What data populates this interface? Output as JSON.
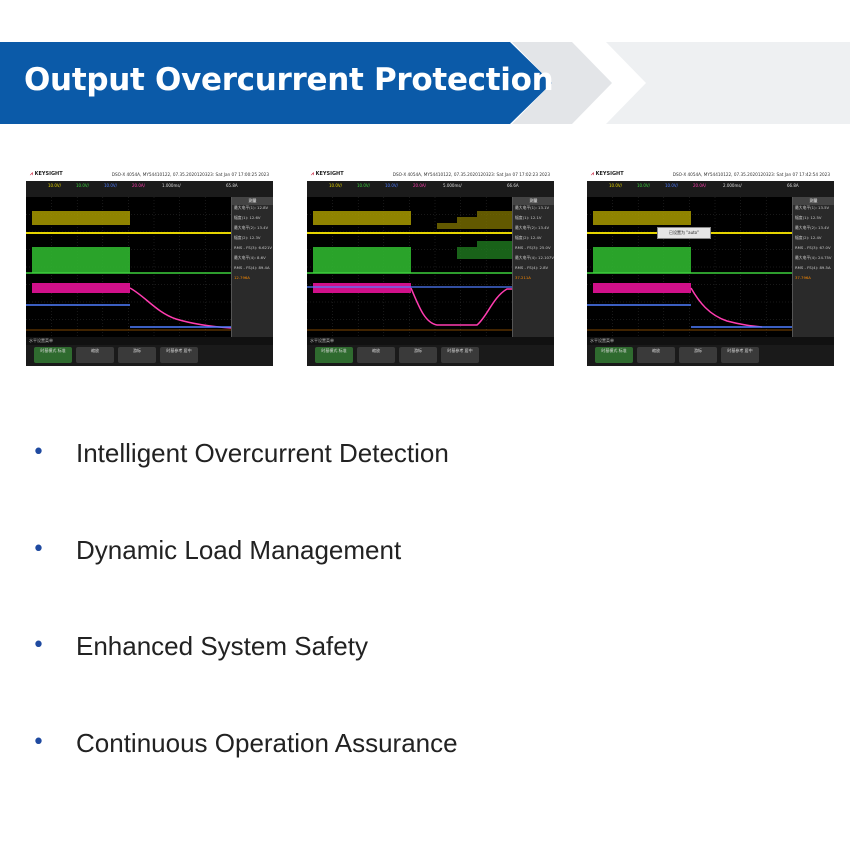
{
  "title": "Output Overcurrent Protection",
  "colors": {
    "banner": "#0b5aa8",
    "chevron1": "#e3e5e8",
    "chevron2": "#eef0f2",
    "bullet": "#1f4aa0"
  },
  "scopes": [
    {
      "brand": "KEYSIGHT",
      "info": "DSO-X 4054A, MY54410122, 07.35.2020120323: Sat Jan 07 17:00:25 2023",
      "channels": [
        "10.0V/",
        "10.0V/",
        "10.0V/",
        "20.0A/",
        "1.000ms/",
        "65.8A"
      ],
      "side_header": "测量",
      "side_rows": [
        "最大电平(1): 12.8V",
        "幅度(1): 12.6V",
        "最大电平(2): 13.4V",
        "幅度(2): 12.3V",
        "RMS - FS(3): 6.621V",
        "最大电平(4): 8.6V",
        "RMS - FS(4): 89.4A",
        "12.796A"
      ],
      "status": "水平设置菜单",
      "softkeys": [
        "时基模式 标准",
        "缩放",
        "游标",
        "时基参考 居中"
      ]
    },
    {
      "brand": "KEYSIGHT",
      "info": "DSO-X 4054A, MY54410122, 07.35.2020120323: Sat Jan 07 17:02:23 2023",
      "channels": [
        "10.0V/",
        "10.0V/",
        "10.0V/",
        "20.0A/",
        "5.000ms/",
        "66.6A"
      ],
      "side_header": "测量",
      "side_rows": [
        "最大电平(1): 13.1V",
        "幅度(1): 12.1V",
        "最大电平(2): 13.4V",
        "幅度(2): 12.4V",
        "RMS - FS(3): 25.0V",
        "最大电平(4): 12.107V",
        "RMS - FS(4): 2.8V",
        "37.211A"
      ],
      "status": "水平设置菜单",
      "softkeys": [
        "时基模式 标准",
        "缩放",
        "游标",
        "时基参考 居中"
      ]
    },
    {
      "brand": "KEYSIGHT",
      "info": "DSO-X 4054A, MY54410122, 07.35.2020120323: Sat Jan 07 17:42:54 2023",
      "channels": [
        "10.0V/",
        "10.0V/",
        "10.0V/",
        "20.0A/",
        "2.000ms/",
        "66.8A"
      ],
      "side_header": "测量",
      "side_rows": [
        "最大电平(1): 13.5V",
        "幅度(1): 12.5V",
        "最大电平(2): 13.4V",
        "幅度(2): 12.4V",
        "RMS - FS(3): 67.0V",
        "最大电平(4): 24.75V",
        "RMS - FS(4): 89.5A",
        "37.796A"
      ],
      "status": "水平设置菜单",
      "softkeys": [
        "时基模式 标准",
        "缩放",
        "游标",
        "时基参考 居中"
      ],
      "popup": "已设置为 \"auto\""
    }
  ],
  "bullets": [
    "Intelligent Overcurrent Detection",
    "Dynamic Load Management",
    "Enhanced System Safety",
    "Continuous Operation Assurance"
  ]
}
